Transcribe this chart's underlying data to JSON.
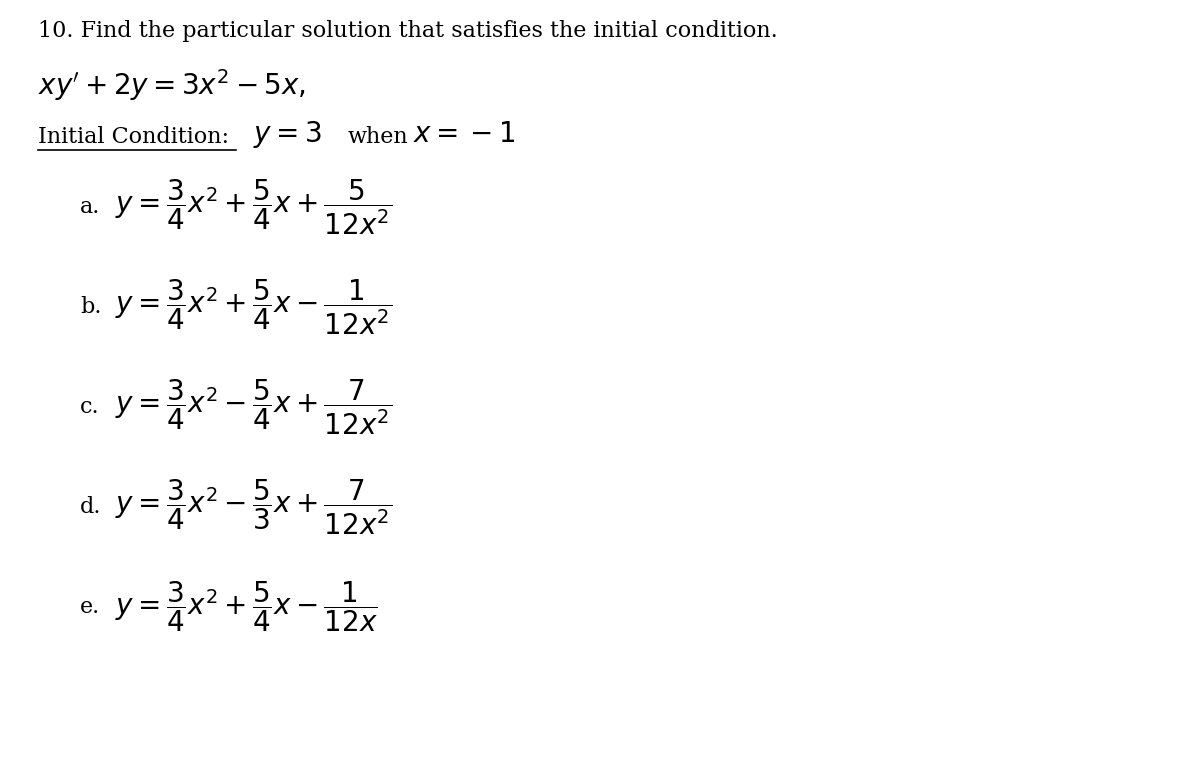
{
  "background_color": "#ffffff",
  "text_color": "#000000",
  "title_text": "10. Find the particular solution that satisfies the initial condition.",
  "title_fontsize": 16,
  "equation_fontsize": 20,
  "ic_label_fontsize": 16,
  "ic_math_fontsize": 20,
  "choice_label_fontsize": 16,
  "choice_expr_fontsize": 20,
  "choices": [
    {
      "label": "a.",
      "expr": "$y = \\dfrac{3}{4}x^2 + \\dfrac{5}{4}x + \\dfrac{5}{12x^2}$"
    },
    {
      "label": "b.",
      "expr": "$y = \\dfrac{3}{4}x^2 + \\dfrac{5}{4}x - \\dfrac{1}{12x^2}$"
    },
    {
      "label": "c.",
      "expr": "$y = \\dfrac{3}{4}x^2 - \\dfrac{5}{4}x + \\dfrac{7}{12x^2}$"
    },
    {
      "label": "d.",
      "expr": "$y = \\dfrac{3}{4}x^2 - \\dfrac{5}{3}x + \\dfrac{7}{12x^2}$"
    },
    {
      "label": "e.",
      "expr": "$y = \\dfrac{3}{4}x^2 + \\dfrac{5}{4}x - \\dfrac{1}{12x}$"
    }
  ]
}
